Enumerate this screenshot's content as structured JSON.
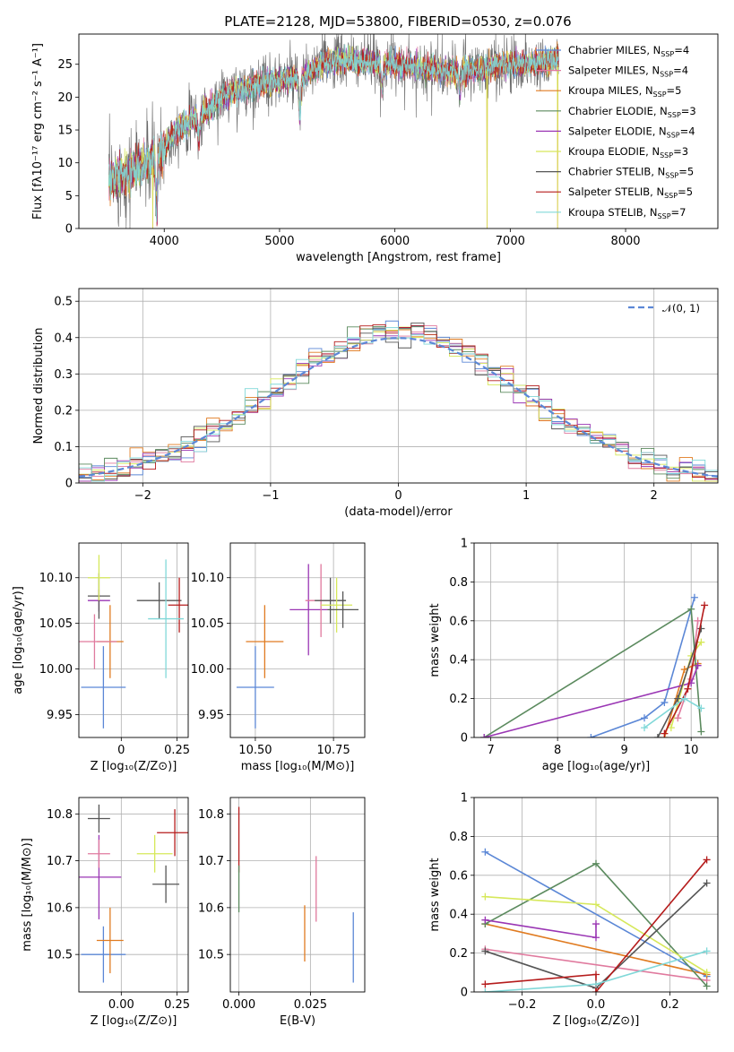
{
  "figure": {
    "title": "PLATE=2128, MJD=53800, FIBERID=0530, z=0.076"
  },
  "chart_data": [
    {
      "id": "spectrum",
      "type": "line",
      "title": "PLATE=2128, MJD=53800, FIBERID=0530, z=0.076",
      "xlabel": "wavelength [Angstrom, rest frame]",
      "ylabel": "Flux [fλ10⁻¹⁷ erg cm⁻² s⁻¹ A⁻¹]",
      "xlim": [
        3260,
        8800
      ],
      "ylim": [
        0,
        29.6
      ],
      "xticks": [
        4000,
        5000,
        6000,
        7000,
        8000
      ],
      "yticks": [
        0,
        5,
        10,
        15,
        20,
        25
      ],
      "grid": false,
      "legend_position": "top-right",
      "legend": [
        "Chabrier MILES, N_SSP=4",
        "Salpeter MILES, N_SSP=4",
        "Kroupa MILES, N_SSP=5",
        "Chabrier ELODIE, N_SSP=3",
        "Salpeter ELODIE, N_SSP=4",
        "Kroupa ELODIE, N_SSP=3",
        "Chabrier STELIB, N_SSP=5",
        "Salpeter STELIB, N_SSP=5",
        "Kroupa STELIB, N_SSP=7"
      ],
      "series_x_range": [
        3520,
        7420
      ],
      "continuum": [
        [
          3520,
          7.5
        ],
        [
          3700,
          8.5
        ],
        [
          3900,
          10.5
        ],
        [
          4000,
          12
        ],
        [
          4100,
          15
        ],
        [
          4300,
          17
        ],
        [
          4500,
          20
        ],
        [
          4800,
          22
        ],
        [
          5000,
          22.5
        ],
        [
          5200,
          23
        ],
        [
          5400,
          25.5
        ],
        [
          5600,
          25.5
        ],
        [
          6000,
          25
        ],
        [
          6400,
          24
        ],
        [
          6600,
          24
        ],
        [
          7000,
          25
        ],
        [
          7200,
          25
        ],
        [
          7420,
          26
        ]
      ],
      "absorption_features": [
        [
          3934,
          8
        ],
        [
          4300,
          4
        ],
        [
          5175,
          6
        ],
        [
          5890,
          4
        ],
        [
          6563,
          3
        ]
      ],
      "spikes": [
        {
          "x": 3900,
          "y": 0
        },
        {
          "x": 6800,
          "y": 0
        },
        {
          "x": 7410,
          "y": 0
        }
      ]
    },
    {
      "id": "residuals",
      "type": "histogram",
      "xlabel": "(data-model)/error",
      "ylabel": "Normed distribution",
      "xlim": [
        -2.5,
        2.5
      ],
      "ylim": [
        0,
        0.535
      ],
      "xticks": [
        -2,
        -1,
        0,
        1,
        2
      ],
      "yticks": [
        0.0,
        0.1,
        0.2,
        0.3,
        0.4,
        0.5
      ],
      "grid": true,
      "legend_position": "top-right",
      "reference_curve": {
        "name": "𝒩(0, 1)",
        "type": "gaussian",
        "mean": 0,
        "sigma": 1
      },
      "bin_width": 0.1
    },
    {
      "id": "age_vs_Z",
      "type": "scatter",
      "xlabel": "Z [log₁₀(Z/Z⊙)]",
      "ylabel": "age  [log₁₀(age/yr)]",
      "xlim": [
        -0.19,
        0.3
      ],
      "ylim": [
        9.925,
        10.138
      ],
      "xticks": [
        -0.0,
        0.25
      ],
      "ytick_labels": [
        "9.95",
        "10.00",
        "10.05",
        "10.10"
      ],
      "yticks": [
        9.95,
        10.0,
        10.05,
        10.1
      ],
      "grid": true,
      "points": [
        {
          "x": -0.08,
          "y": 9.98,
          "xerr": 0.1,
          "yerr": 0.045
        },
        {
          "x": -0.05,
          "y": 10.03,
          "xerr": 0.06,
          "yerr": 0.04
        },
        {
          "x": -0.1,
          "y": 10.075,
          "xerr": 0.05,
          "yerr": 0.012
        },
        {
          "x": -0.12,
          "y": 10.03,
          "xerr": 0.1,
          "yerr": 0.03
        },
        {
          "x": -0.1,
          "y": 10.08,
          "xerr": 0.05,
          "yerr": 0.025
        },
        {
          "x": -0.1,
          "y": 10.1,
          "xerr": 0.05,
          "yerr": 0.025
        },
        {
          "x": 0.17,
          "y": 10.075,
          "xerr": 0.1,
          "yerr": 0.02
        },
        {
          "x": 0.26,
          "y": 10.07,
          "xerr": 0.05,
          "yerr": 0.03
        },
        {
          "x": 0.2,
          "y": 10.055,
          "xerr": 0.08,
          "yerr": 0.065
        }
      ]
    },
    {
      "id": "age_vs_mass",
      "type": "scatter",
      "xlabel": "mass [log₁₀(M/M⊙)]",
      "ylabel": "",
      "xlim": [
        10.42,
        10.85
      ],
      "ylim": [
        9.925,
        10.138
      ],
      "xticks": [
        10.5,
        10.75
      ],
      "xtick_labels": [
        "10.50",
        "10.75"
      ],
      "yticks": [
        9.95,
        10.0,
        10.05,
        10.1
      ],
      "ytick_labels": [
        "9.95",
        "10.00",
        "10.05",
        "10.10"
      ],
      "grid": true,
      "points": [
        {
          "x": 10.5,
          "y": 9.98,
          "xerr": 0.06,
          "yerr": 0.045
        },
        {
          "x": 10.53,
          "y": 10.03,
          "xerr": 0.06,
          "yerr": 0.04
        },
        {
          "x": 10.67,
          "y": 10.065,
          "xerr": 0.06,
          "yerr": 0.05
        },
        {
          "x": 10.71,
          "y": 10.075,
          "xerr": 0.05,
          "yerr": 0.04
        },
        {
          "x": 10.74,
          "y": 10.075,
          "xerr": 0.05,
          "yerr": 0.025
        },
        {
          "x": 10.76,
          "y": 10.07,
          "xerr": 0.05,
          "yerr": 0.03
        },
        {
          "x": 10.78,
          "y": 10.065,
          "xerr": 0.05,
          "yerr": 0.02
        }
      ]
    },
    {
      "id": "weight_vs_age",
      "type": "line",
      "xlabel": "age  [log₁₀(age/yr)]",
      "ylabel": "mass weight",
      "xlim": [
        6.75,
        10.4
      ],
      "ylim": [
        0,
        1.0
      ],
      "xticks": [
        7,
        8,
        9,
        10
      ],
      "yticks": [
        0.0,
        0.2,
        0.4,
        0.6,
        0.8,
        1.0
      ],
      "grid": true
    },
    {
      "id": "mass_vs_Z",
      "type": "scatter",
      "xlabel": "Z [log₁₀(Z/Z⊙)]",
      "ylabel": "mass [log₁₀(M/M⊙)]",
      "xlim": [
        -0.19,
        0.3
      ],
      "ylim": [
        10.42,
        10.835
      ],
      "xticks": [
        0.0,
        0.25
      ],
      "xtick_labels": [
        "0.00",
        "0.25"
      ],
      "yticks": [
        10.5,
        10.6,
        10.7,
        10.8
      ],
      "grid": true,
      "points": [
        {
          "x": -0.08,
          "y": 10.5,
          "xerr": 0.1,
          "yerr": 0.06
        },
        {
          "x": -0.05,
          "y": 10.53,
          "xerr": 0.06,
          "yerr": 0.07
        },
        {
          "x": -0.1,
          "y": 10.665,
          "xerr": 0.1,
          "yerr": 0.09
        },
        {
          "x": -0.1,
          "y": 10.715,
          "xerr": 0.05,
          "yerr": 0.03
        },
        {
          "x": -0.1,
          "y": 10.79,
          "xerr": 0.05,
          "yerr": 0.03
        },
        {
          "x": 0.15,
          "y": 10.715,
          "xerr": 0.08,
          "yerr": 0.04
        },
        {
          "x": 0.2,
          "y": 10.65,
          "xerr": 0.06,
          "yerr": 0.04
        },
        {
          "x": 0.24,
          "y": 10.76,
          "xerr": 0.08,
          "yerr": 0.05
        }
      ]
    },
    {
      "id": "mass_vs_ebv",
      "type": "scatter",
      "xlabel": "E(B-V)",
      "ylabel": "",
      "xlim": [
        -0.003,
        0.044
      ],
      "ylim": [
        10.42,
        10.835
      ],
      "xticks": [
        0.0,
        0.025
      ],
      "xtick_labels": [
        "0.000",
        "0.025"
      ],
      "yticks": [
        10.5,
        10.6,
        10.7,
        10.8
      ],
      "grid": true,
      "points": [
        {
          "x": 0.0,
          "y": 10.745,
          "yerr": 0.07
        },
        {
          "x": 0.0,
          "y": 10.64,
          "yerr": 0.05
        },
        {
          "x": 0.023,
          "y": 10.545,
          "yerr": 0.06
        },
        {
          "x": 0.027,
          "y": 10.64,
          "yerr": 0.07
        },
        {
          "x": 0.04,
          "y": 10.515,
          "yerr": 0.075
        }
      ]
    },
    {
      "id": "weight_vs_Z",
      "type": "line",
      "xlabel": "Z [log₁₀(Z/Z⊙)]",
      "ylabel": "mass weight",
      "xlim": [
        -0.33,
        0.33
      ],
      "ylim": [
        0,
        1.0
      ],
      "xticks": [
        -0.2,
        0.0,
        0.2
      ],
      "xtick_labels": [
        "−0.2",
        "0.0",
        "0.2"
      ],
      "yticks": [
        0.0,
        0.2,
        0.4,
        0.6,
        0.8,
        1.0
      ],
      "grid": true
    }
  ],
  "colors": [
    "#5b87d6",
    "#e07a9e",
    "#e07b20",
    "#5b8a5e",
    "#9a36b4",
    "#d6e85a",
    "#555555",
    "#b51c1c",
    "#80d8d8"
  ]
}
